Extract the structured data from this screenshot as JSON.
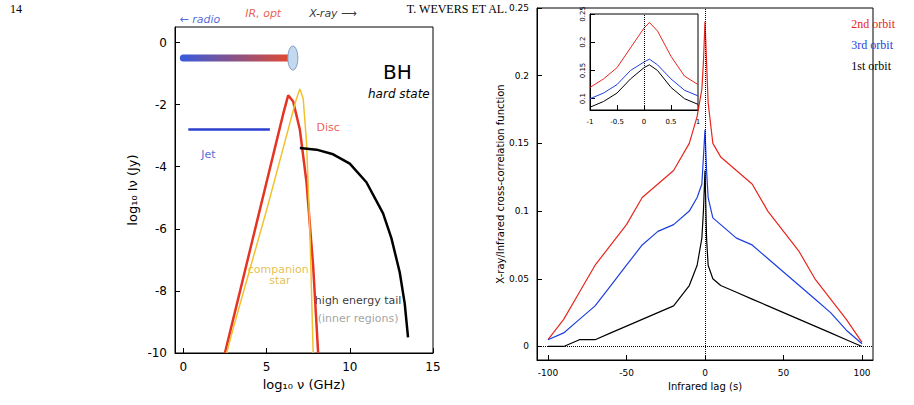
{
  "page_header": {
    "page": "14",
    "running_head": "T. WEVERS ET AL."
  },
  "chart_data": [
    {
      "type": "line",
      "title": "BH",
      "subtitle": "hard state",
      "xlabel": "log₁₀ ν (GHz)",
      "ylabel": "log₁₀ Iν (Jy)",
      "xlim": [
        -0.5,
        15
      ],
      "ylim": [
        -10,
        0.5
      ],
      "xticks": [
        0,
        5,
        10,
        15
      ],
      "yticks": [
        -10,
        -8,
        -6,
        -4,
        -2,
        0
      ],
      "grid": false,
      "series": [
        {
          "name": "Jet",
          "color": "#2a3fd0",
          "x": [
            0.3,
            5.2
          ],
          "values": [
            -2.8,
            -2.8
          ]
        },
        {
          "name": "Disc",
          "color": "#e53424",
          "x": [
            2.5,
            3,
            3.5,
            4,
            4.5,
            5,
            5.5,
            6,
            6.3,
            6.6,
            7,
            7.4,
            7.8,
            8.1
          ],
          "values": [
            -10,
            -8.9,
            -7.8,
            -6.7,
            -5.6,
            -4.5,
            -3.4,
            -2.3,
            -1.7,
            -1.9,
            -2.8,
            -4.5,
            -7.2,
            -10
          ]
        },
        {
          "name": "companion star",
          "color": "#f2c12e",
          "x": [
            2.6,
            3,
            4,
            5,
            6,
            6.5,
            6.8,
            7.0,
            7.2,
            7.4,
            7.6,
            7.8
          ],
          "values": [
            -10,
            -9.2,
            -7.3,
            -5.4,
            -3.4,
            -2.4,
            -1.8,
            -1.5,
            -1.8,
            -3.2,
            -6,
            -10
          ]
        },
        {
          "name": "high energy tail",
          "color": "#000000",
          "x": [
            7.0,
            8,
            9,
            10,
            11,
            12,
            12.5,
            13,
            13.3,
            13.5
          ],
          "values": [
            -3.4,
            -3.45,
            -3.6,
            -3.9,
            -4.5,
            -5.5,
            -6.3,
            -7.4,
            -8.4,
            -9.5
          ]
        }
      ],
      "band": {
        "x": [
          0,
          6.4
        ],
        "values": [
          -0.5,
          -0.5
        ],
        "colors": [
          "#3a5ad8",
          "#e04a30"
        ]
      },
      "annotations": [
        {
          "text": "Jet",
          "x": 1.5,
          "y": -3.6,
          "color": "#2a3fd0"
        },
        {
          "text": "Disc",
          "x": 8.7,
          "y": -2.75,
          "color": "#e53424"
        },
        {
          "text": "companion star",
          "x": 5.7,
          "y": -7.5,
          "color": "#e0b020"
        },
        {
          "text": "high energy tail",
          "x": 10.5,
          "y": -8.3,
          "color": "#000000"
        },
        {
          "text": "(inner regions)",
          "x": 10.5,
          "y": -8.9,
          "color": "#8a8a8a"
        }
      ],
      "wavebands": [
        {
          "text": "← radio",
          "x": 1.0,
          "y": 0.75,
          "color": "#2a3fd0"
        },
        {
          "text": "IR, opt",
          "x": 4.8,
          "y": 0.95,
          "color": "#e53424"
        },
        {
          "text": "X-ray ⟶",
          "x": 9.0,
          "y": 0.95,
          "color": "#000000"
        }
      ]
    },
    {
      "type": "line",
      "xlabel": "Infrared lag (s)",
      "ylabel": "X-ray/Infrared cross-correlation function",
      "xlim": [
        -107,
        107
      ],
      "ylim": [
        -0.01,
        0.25
      ],
      "xticks": [
        -100,
        -50,
        0,
        50,
        100
      ],
      "yticks": [
        0,
        0.05,
        0.1,
        0.15,
        0.2,
        0.25
      ],
      "grid": false,
      "legend": "upper right",
      "zero_lines": {
        "x": 0,
        "y": 0
      },
      "x": [
        -100,
        -90,
        -80,
        -70,
        -60,
        -50,
        -40,
        -30,
        -20,
        -10,
        -5,
        -2,
        -1,
        0,
        1,
        2,
        5,
        10,
        20,
        30,
        40,
        50,
        60,
        70,
        80,
        90,
        100
      ],
      "series": [
        {
          "name": "2nd orbit",
          "color": "#e8261c",
          "values": [
            0.005,
            0.02,
            0.04,
            0.06,
            0.075,
            0.09,
            0.11,
            0.12,
            0.13,
            0.15,
            0.17,
            0.19,
            0.21,
            0.24,
            0.21,
            0.18,
            0.15,
            0.14,
            0.13,
            0.12,
            0.1,
            0.085,
            0.07,
            0.05,
            0.035,
            0.02,
            0.003
          ]
        },
        {
          "name": "3rd orbit",
          "color": "#1d3fe0",
          "values": [
            0.005,
            0.01,
            0.02,
            0.03,
            0.045,
            0.06,
            0.075,
            0.085,
            0.09,
            0.1,
            0.11,
            0.12,
            0.14,
            0.16,
            0.13,
            0.11,
            0.095,
            0.09,
            0.08,
            0.075,
            0.065,
            0.055,
            0.045,
            0.035,
            0.025,
            0.012,
            0.002
          ]
        },
        {
          "name": "1st orbit",
          "color": "#000000",
          "values": [
            0,
            0,
            0.005,
            0.005,
            0.01,
            0.015,
            0.02,
            0.025,
            0.03,
            0.045,
            0.06,
            0.08,
            0.1,
            0.13,
            0.08,
            0.06,
            0.05,
            0.045,
            0.04,
            0.035,
            0.03,
            0.025,
            0.02,
            0.015,
            0.01,
            0.005,
            0
          ]
        }
      ]
    },
    {
      "type": "line",
      "xlim": [
        -1,
        1
      ],
      "ylim": [
        0.08,
        0.25
      ],
      "xticks": [
        -1,
        -0.5,
        0,
        0.5,
        1
      ],
      "yticks": [
        0.1,
        0.15,
        0.2,
        0.25
      ],
      "grid": false,
      "zero_lines": {
        "x": 0
      },
      "x": [
        -1,
        -0.75,
        -0.5,
        -0.25,
        0,
        0.1,
        0.25,
        0.5,
        0.75,
        1
      ],
      "series": [
        {
          "name": "2nd orbit",
          "color": "#e8261c",
          "values": [
            0.12,
            0.135,
            0.155,
            0.19,
            0.225,
            0.235,
            0.22,
            0.175,
            0.14,
            0.125
          ]
        },
        {
          "name": "3rd orbit",
          "color": "#1d3fe0",
          "values": [
            0.1,
            0.11,
            0.125,
            0.15,
            0.165,
            0.17,
            0.16,
            0.135,
            0.115,
            0.105
          ]
        },
        {
          "name": "1st orbit",
          "color": "#000000",
          "values": [
            0.085,
            0.095,
            0.11,
            0.135,
            0.155,
            0.16,
            0.15,
            0.12,
            0.1,
            0.09
          ]
        }
      ]
    }
  ]
}
